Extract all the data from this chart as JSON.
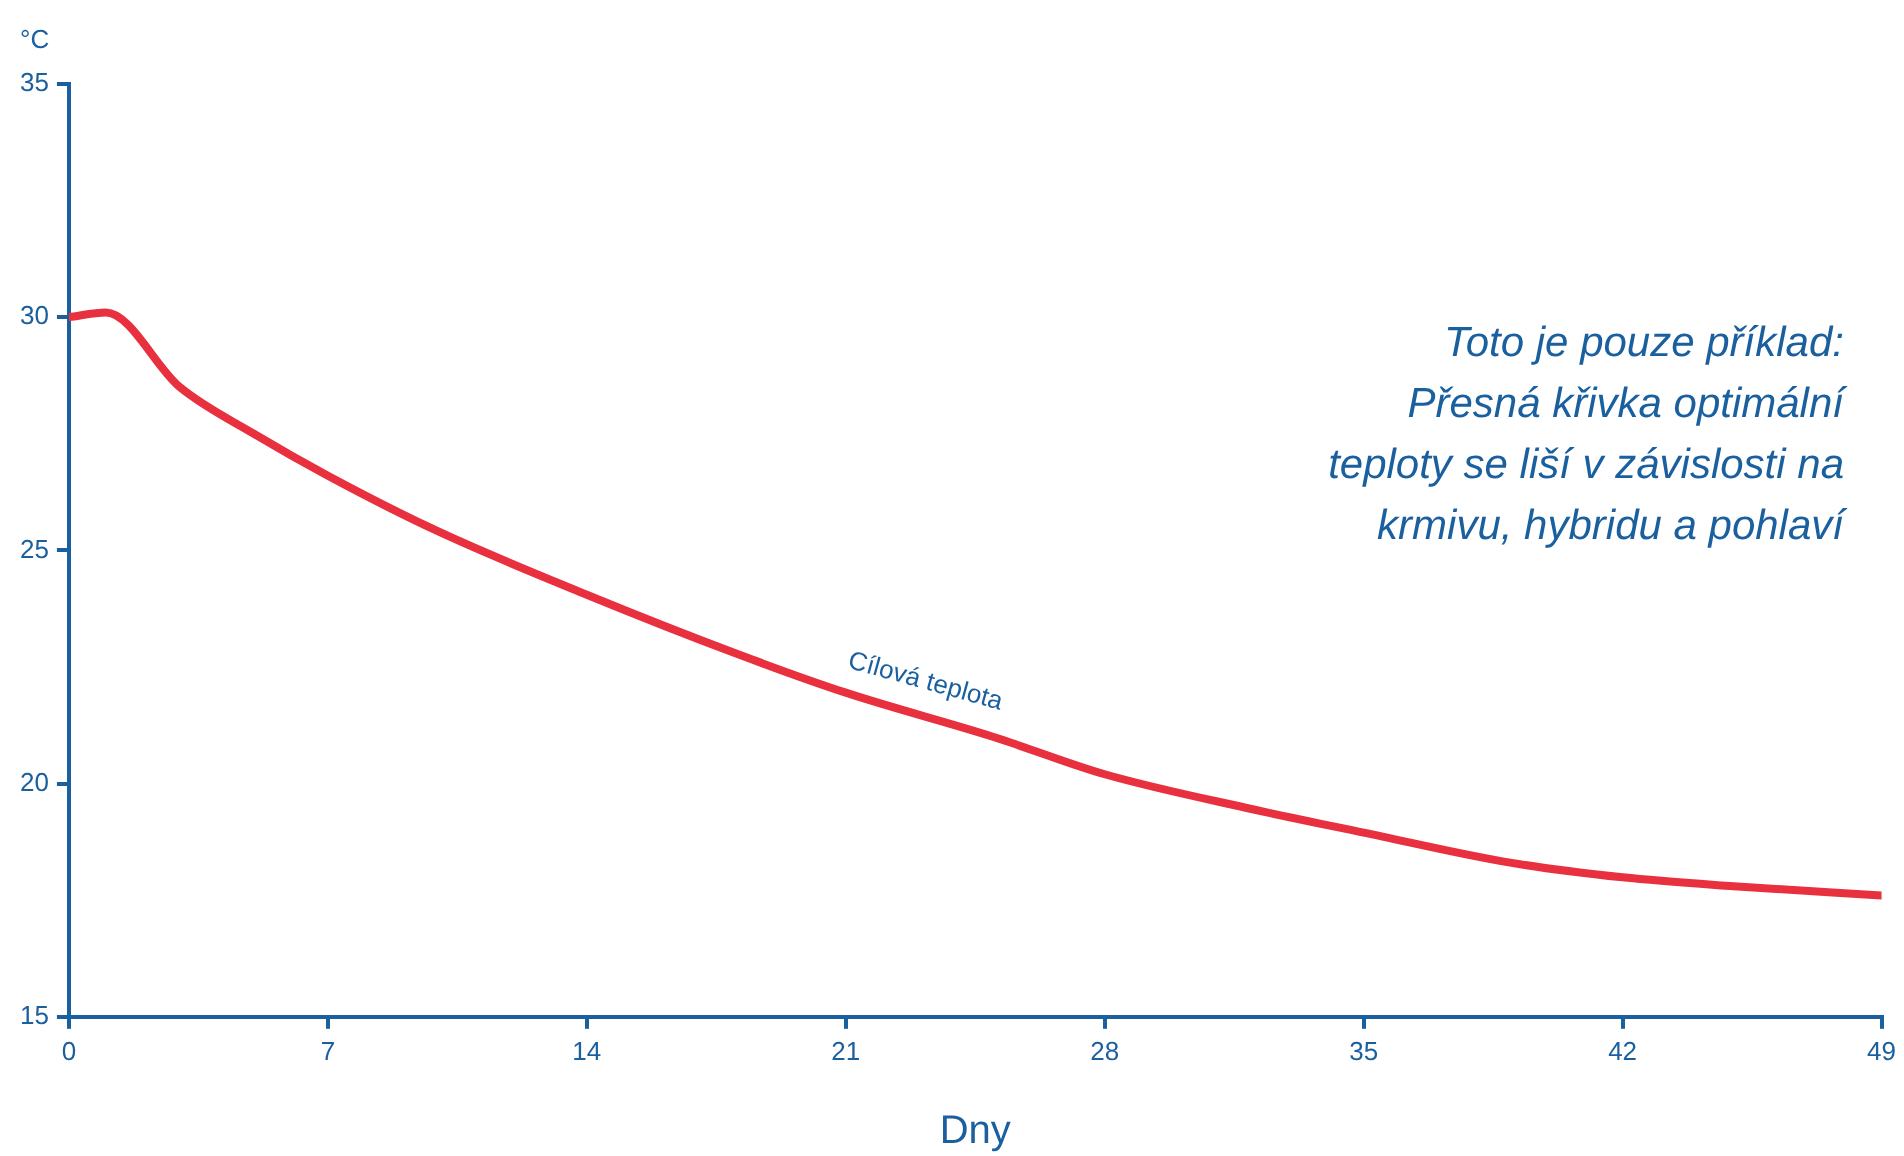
{
  "chart_data": {
    "type": "line",
    "xlabel": "Dny",
    "ylabel": "°C",
    "x": [
      0,
      1,
      3,
      5,
      7,
      10,
      14,
      18,
      21,
      25,
      28,
      32,
      35,
      39,
      42,
      45,
      49
    ],
    "series": [
      {
        "color": "#e8303e",
        "values": [
          30.0,
          30.1,
          28.5,
          27.5,
          26.6,
          25.4,
          24.05,
          22.8,
          21.95,
          21.0,
          20.2,
          19.45,
          18.95,
          18.3,
          17.99,
          17.8,
          17.6
        ]
      }
    ],
    "xlim": [
      0,
      49
    ],
    "xticks": [
      0,
      7,
      14,
      21,
      28,
      35,
      42,
      49
    ],
    "ylim": [
      15,
      35
    ],
    "yticks": [
      15,
      20,
      25,
      30,
      35
    ],
    "grid": false,
    "legend": false,
    "annotations": [
      {
        "text": "Cílová teplota",
        "x": 23,
        "y": 21.75
      },
      "Toto je pouze příklad:\nPřesná křivka optimální\nteploty se liší v závislosti na\nkrmivu, hybridu a pohlaví"
    ]
  }
}
